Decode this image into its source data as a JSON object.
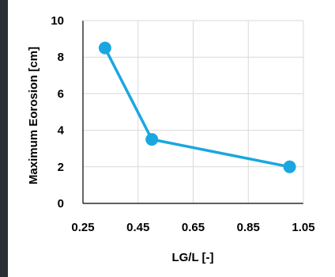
{
  "chart_data": {
    "type": "line",
    "title": "",
    "xlabel": "LG/L [-]",
    "ylabel": "Maximum Eorosion [cm]",
    "xlim": [
      0.25,
      1.05
    ],
    "ylim": [
      0,
      10
    ],
    "x_ticks": [
      "0.25",
      "0.45",
      "0.65",
      "0.85",
      "1.05"
    ],
    "y_ticks": [
      "0",
      "2",
      "4",
      "6",
      "8",
      "10"
    ],
    "grid": true,
    "legend": "none",
    "series": [
      {
        "x": [
          0.33,
          0.5,
          1.0
        ],
        "y": [
          8.5,
          3.5,
          2.0
        ],
        "color": "#1aa7e0"
      }
    ]
  }
}
